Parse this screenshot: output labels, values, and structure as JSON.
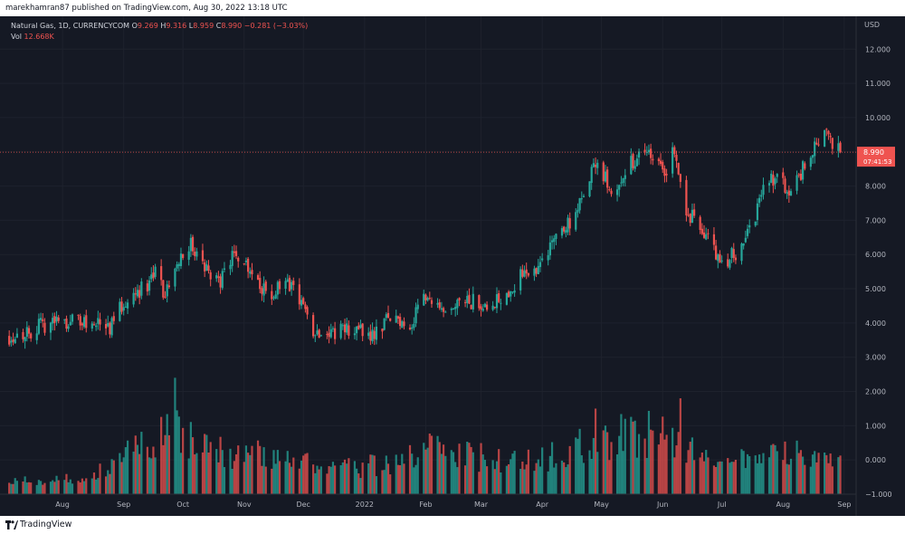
{
  "header": {
    "published_text": "marekhamran87 published on TradingView.com, Aug 30, 2022 13:18 UTC"
  },
  "legend": {
    "symbol": "Natural Gas, 1D, CURRENCYCOM",
    "o_label": "O",
    "o_value": "9.269",
    "h_label": "H",
    "h_value": "9.316",
    "l_label": "L",
    "l_value": "8.959",
    "c_label": "C",
    "c_value": "8.990",
    "change": "−0.281 (−3.03%)",
    "vol_label": "Vol",
    "vol_value": "12.668K"
  },
  "price_tag": {
    "price": "8.990",
    "countdown": "07:41:53"
  },
  "footer": {
    "brand": "TradingView"
  },
  "colors": {
    "up": "#26a69a",
    "down": "#ef5350",
    "background": "#151924",
    "grid": "#1e222d",
    "text": "#b2b5be"
  },
  "chart_data": {
    "type": "candlestick",
    "currency_label": "USD",
    "y_ticks": [
      "12.000",
      "11.000",
      "10.000",
      "9.000",
      "8.000",
      "7.000",
      "6.000",
      "5.000",
      "4.000",
      "3.000",
      "2.000",
      "1.000",
      "0.000",
      "−1.000"
    ],
    "y_range": [
      -1.0,
      12.8
    ],
    "x_ticks": [
      "Aug",
      "Sep",
      "Oct",
      "Nov",
      "Dec",
      "2022",
      "Feb",
      "Mar",
      "Apr",
      "May",
      "Jun",
      "Jul",
      "Aug",
      "Sep"
    ],
    "x_tick_dates": [
      "2021-08-01",
      "2021-09-01",
      "2021-10-01",
      "2021-11-01",
      "2021-12-01",
      "2022-01-01",
      "2022-02-01",
      "2022-03-01",
      "2022-04-01",
      "2022-05-01",
      "2022-06-01",
      "2022-07-01",
      "2022-08-01",
      "2022-09-01"
    ],
    "x_range": [
      "2021-07-04",
      "2022-09-07"
    ],
    "last_close": 8.99,
    "close_path": [
      [
        "2021-07-05",
        3.62
      ],
      [
        "2021-07-15",
        3.75
      ],
      [
        "2021-07-25",
        4.0
      ],
      [
        "2021-08-05",
        4.1
      ],
      [
        "2021-08-15",
        4.0
      ],
      [
        "2021-08-25",
        3.9
      ],
      [
        "2021-09-02",
        4.7
      ],
      [
        "2021-09-12",
        5.1
      ],
      [
        "2021-09-17",
        5.4
      ],
      [
        "2021-09-22",
        4.8
      ],
      [
        "2021-09-28",
        5.9
      ],
      [
        "2021-10-05",
        6.3
      ],
      [
        "2021-10-12",
        5.6
      ],
      [
        "2021-10-20",
        5.2
      ],
      [
        "2021-10-27",
        6.1
      ],
      [
        "2021-11-05",
        5.6
      ],
      [
        "2021-11-12",
        4.8
      ],
      [
        "2021-11-20",
        5.0
      ],
      [
        "2021-11-27",
        5.1
      ],
      [
        "2021-12-05",
        3.8
      ],
      [
        "2021-12-15",
        3.75
      ],
      [
        "2021-12-25",
        3.8
      ],
      [
        "2022-01-05",
        3.7
      ],
      [
        "2022-01-15",
        4.2
      ],
      [
        "2022-01-25",
        3.9
      ],
      [
        "2022-01-31",
        5.0
      ],
      [
        "2022-02-10",
        4.1
      ],
      [
        "2022-02-20",
        4.6
      ],
      [
        "2022-03-01",
        4.6
      ],
      [
        "2022-03-10",
        4.7
      ],
      [
        "2022-03-20",
        5.3
      ],
      [
        "2022-03-31",
        5.7
      ],
      [
        "2022-04-08",
        6.6
      ],
      [
        "2022-04-18",
        7.1
      ],
      [
        "2022-04-28",
        8.7
      ],
      [
        "2022-05-06",
        7.9
      ],
      [
        "2022-05-15",
        8.6
      ],
      [
        "2022-05-25",
        9.0
      ],
      [
        "2022-06-02",
        8.4
      ],
      [
        "2022-06-07",
        9.1
      ],
      [
        "2022-06-13",
        7.3
      ],
      [
        "2022-06-22",
        6.6
      ],
      [
        "2022-07-01",
        5.8
      ],
      [
        "2022-07-08",
        6.0
      ],
      [
        "2022-07-15",
        6.7
      ],
      [
        "2022-07-25",
        8.3
      ],
      [
        "2022-08-05",
        7.9
      ],
      [
        "2022-08-15",
        8.9
      ],
      [
        "2022-08-22",
        9.5
      ],
      [
        "2022-08-30",
        8.99
      ]
    ],
    "volume_profile_k": [
      [
        "2021-07-05",
        0.4
      ],
      [
        "2021-08-15",
        0.5
      ],
      [
        "2021-09-10",
        1.5
      ],
      [
        "2021-09-25",
        2.1
      ],
      [
        "2021-10-10",
        1.4
      ],
      [
        "2021-11-10",
        1.2
      ],
      [
        "2021-12-05",
        1.0
      ],
      [
        "2021-12-25",
        0.8
      ],
      [
        "2022-01-15",
        1.0
      ],
      [
        "2022-02-05",
        1.5
      ],
      [
        "2022-03-05",
        1.1
      ],
      [
        "2022-04-05",
        1.2
      ],
      [
        "2022-05-01",
        1.8
      ],
      [
        "2022-06-01",
        1.9
      ],
      [
        "2022-06-15",
        1.4
      ],
      [
        "2022-07-10",
        1.0
      ],
      [
        "2022-08-05",
        1.3
      ],
      [
        "2022-08-30",
        0.9
      ]
    ],
    "volume_spikes_k": [
      [
        "2021-09-27",
        2.4
      ],
      [
        "2022-06-10",
        1.8
      ],
      [
        "2022-04-28",
        1.5
      ]
    ]
  }
}
